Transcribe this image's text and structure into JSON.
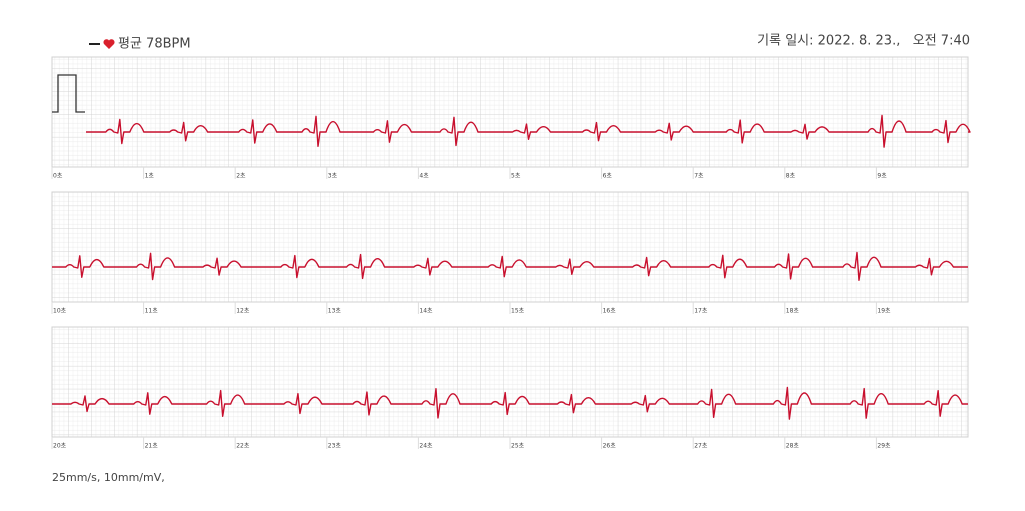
{
  "header": {
    "legend": "평균 78BPM",
    "record_time": "기록 일시: 2022. 8. 23.,   오전 7:40"
  },
  "strips": [
    {
      "labels": [
        "0초",
        "1초",
        "2초",
        "3초",
        "4초",
        "5초",
        "6초",
        "7초",
        "8초",
        "9초"
      ]
    },
    {
      "labels": [
        "10초",
        "11초",
        "12초",
        "13초",
        "14초",
        "15초",
        "16초",
        "17초",
        "18초",
        "19초"
      ]
    },
    {
      "labels": [
        "20초",
        "21초",
        "22초",
        "23초",
        "24초",
        "25초",
        "26초",
        "27초",
        "28초",
        "29초"
      ]
    }
  ],
  "footer": "25mm/s, 10mm/mV,"
}
